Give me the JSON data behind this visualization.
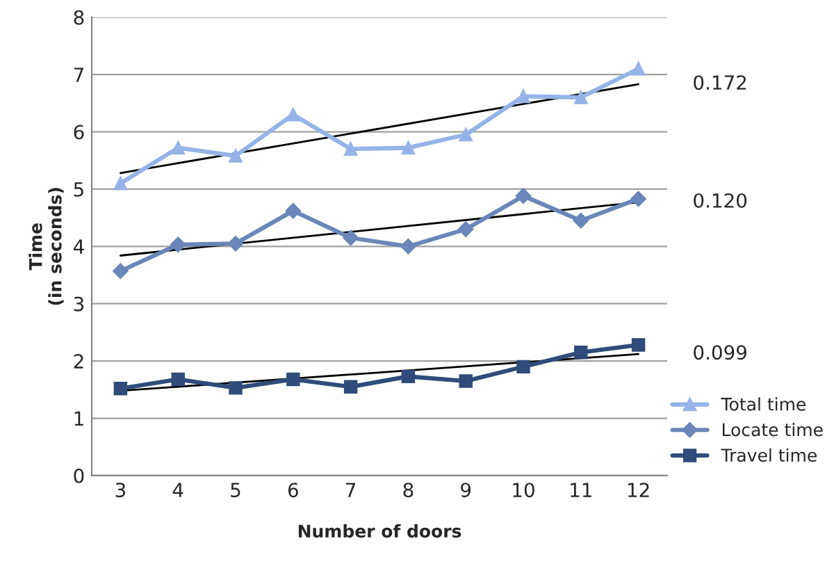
{
  "chart_data": {
    "type": "line",
    "xlabel": "Number of doors",
    "ylabel": "Time\n(in seconds)",
    "categories": [
      "3",
      "4",
      "5",
      "6",
      "7",
      "8",
      "9",
      "10",
      "11",
      "12"
    ],
    "ylim": [
      0,
      8
    ],
    "yticks": [
      0,
      1,
      2,
      3,
      4,
      5,
      6,
      7,
      8
    ],
    "grid": "y",
    "legend": "bottom right",
    "series": [
      {
        "name": "Total time",
        "color": "#95b3e6",
        "marker": "triangle",
        "values": [
          5.1,
          5.72,
          5.58,
          6.3,
          5.7,
          5.72,
          5.95,
          6.62,
          6.6,
          7.1
        ]
      },
      {
        "name": "Locate time",
        "color": "#6b86b8",
        "marker": "diamond",
        "values": [
          3.57,
          4.03,
          4.05,
          4.62,
          4.15,
          4.0,
          4.3,
          4.88,
          4.45,
          4.83
        ]
      },
      {
        "name": "Travel time",
        "color": "#2f4c7a",
        "marker": "square",
        "values": [
          1.52,
          1.68,
          1.53,
          1.68,
          1.55,
          1.73,
          1.65,
          1.9,
          2.15,
          2.28
        ]
      },
      {
        "color": "#000000",
        "marker": "none",
        "x": [
          "3",
          "12"
        ],
        "values": [
          5.28,
          6.83
        ]
      },
      {
        "color": "#000000",
        "marker": "none",
        "x": [
          "3",
          "12"
        ],
        "values": [
          3.84,
          4.77
        ]
      },
      {
        "color": "#000000",
        "marker": "none",
        "x": [
          "3",
          "12"
        ],
        "values": [
          1.48,
          2.12
        ]
      }
    ],
    "annotations": [
      {
        "text": "0.172",
        "x": "12",
        "y": 6.83
      },
      {
        "text": "0.120",
        "x": "12",
        "y": 4.77
      },
      {
        "text": "0.099",
        "x": "12",
        "y": 2.12
      }
    ]
  }
}
